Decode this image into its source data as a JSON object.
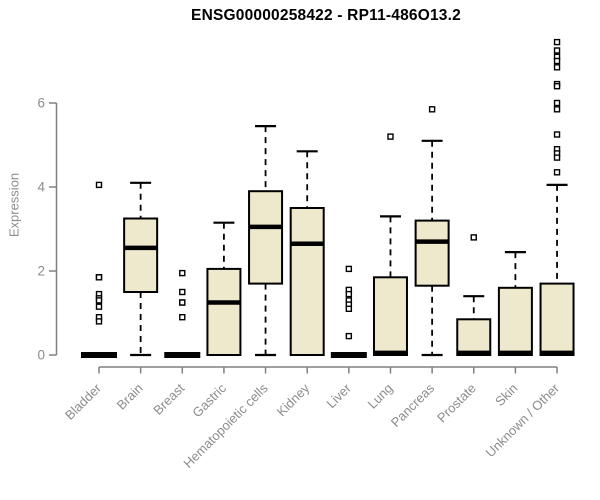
{
  "chart_data": {
    "type": "boxplot",
    "title": "ENSG00000258422 - RP11-486O13.2",
    "ylabel": "Expression",
    "xlabel": "",
    "yticks": [
      0,
      2,
      4,
      6
    ],
    "ylim": [
      0,
      7.6
    ],
    "grid": false,
    "legend": null,
    "colors": {
      "box_fill": "#EEE8CD",
      "box_stroke": "#000000",
      "median": "#000000",
      "axis": "#808080",
      "tick_text": "#8C8C8C",
      "title_text": "#000000",
      "outlier_fill": "#FFFFFF"
    },
    "categories": [
      "Bladder",
      "Brain",
      "Breast",
      "Gastric",
      "Hematopoietic cells",
      "Kidney",
      "Liver",
      "Lung",
      "Pancreas",
      "Prostate",
      "Skin",
      "Unknown / Other"
    ],
    "boxes": [
      {
        "category": "Bladder",
        "min": 0,
        "q1": 0,
        "median": 0,
        "q3": 0.05,
        "max": 0.05,
        "outliers": [
          4.05,
          1.85,
          1.85,
          1.45,
          1.35,
          1.3,
          1.15,
          0.9,
          0.8
        ]
      },
      {
        "category": "Brain",
        "min": 0,
        "q1": 1.5,
        "median": 2.55,
        "q3": 3.25,
        "max": 4.1,
        "outliers": []
      },
      {
        "category": "Breast",
        "min": 0,
        "q1": 0,
        "median": 0,
        "q3": 0.05,
        "max": 0.05,
        "outliers": [
          1.95,
          1.5,
          1.25,
          1.25,
          0.9
        ]
      },
      {
        "category": "Gastric",
        "min": 0,
        "q1": 0,
        "median": 1.25,
        "q3": 2.05,
        "max": 3.15,
        "outliers": []
      },
      {
        "category": "Hematopoietic cells",
        "min": 0,
        "q1": 1.7,
        "median": 3.05,
        "q3": 3.9,
        "max": 5.45,
        "outliers": []
      },
      {
        "category": "Kidney",
        "min": 0,
        "q1": 0,
        "median": 2.65,
        "q3": 3.5,
        "max": 4.85,
        "outliers": []
      },
      {
        "category": "Liver",
        "min": 0,
        "q1": 0,
        "median": 0,
        "q3": 0.05,
        "max": 0.05,
        "outliers": [
          2.05,
          1.55,
          1.45,
          1.3,
          1.2,
          1.1,
          0.45
        ]
      },
      {
        "category": "Lung",
        "min": 0,
        "q1": 0,
        "median": 0.05,
        "q3": 1.85,
        "max": 3.3,
        "outliers": [
          5.2
        ]
      },
      {
        "category": "Pancreas",
        "min": 0,
        "q1": 1.65,
        "median": 2.7,
        "q3": 3.2,
        "max": 5.1,
        "outliers": [
          5.85
        ]
      },
      {
        "category": "Prostate",
        "min": 0,
        "q1": 0,
        "median": 0.05,
        "q3": 0.85,
        "max": 1.4,
        "outliers": [
          2.8
        ]
      },
      {
        "category": "Skin",
        "min": 0,
        "q1": 0,
        "median": 0.05,
        "q3": 1.6,
        "max": 2.45,
        "outliers": []
      },
      {
        "category": "Unknown / Other",
        "min": 0,
        "q1": 0,
        "median": 0.05,
        "q3": 1.7,
        "max": 4.05,
        "outliers": [
          7.45,
          7.25,
          7.1,
          7.0,
          6.85,
          6.45,
          6.4,
          6.0,
          5.85,
          5.25,
          4.9,
          4.8,
          4.7,
          4.35
        ]
      }
    ]
  }
}
